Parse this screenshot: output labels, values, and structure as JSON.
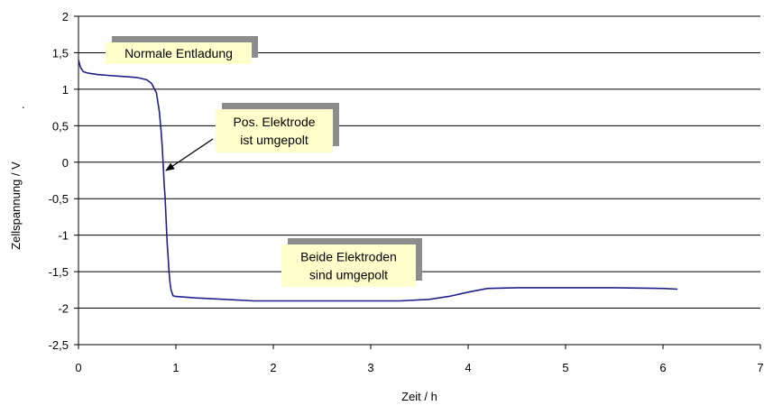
{
  "chart_data": {
    "type": "line",
    "xlabel": "Zeit / h",
    "ylabel": "Zellspannung / V",
    "ylabel_suffix": ".",
    "xlim": [
      0,
      7
    ],
    "ylim": [
      -2.5,
      2
    ],
    "x_ticks": [
      0,
      1,
      2,
      3,
      4,
      5,
      6,
      7
    ],
    "x_tick_labels": [
      "0",
      "1",
      "2",
      "3",
      "4",
      "5",
      "6",
      "7"
    ],
    "y_ticks": [
      2,
      1.5,
      1,
      0.5,
      0,
      -0.5,
      -1,
      -1.5,
      -2,
      -2.5
    ],
    "y_tick_labels": [
      "2",
      "1,5",
      "1",
      "0,5",
      "0",
      "-0,5",
      "-1",
      "-1,5",
      "-2",
      "-2,5"
    ],
    "grid": "horizontal",
    "legend": "none",
    "series": [
      {
        "color": "#1f1f8c",
        "x": [
          0.0,
          0.02,
          0.05,
          0.1,
          0.2,
          0.3,
          0.4,
          0.5,
          0.6,
          0.7,
          0.75,
          0.8,
          0.83,
          0.85,
          0.86,
          0.87,
          0.88,
          0.89,
          0.9,
          0.91,
          0.92,
          0.93,
          0.94,
          0.95,
          0.97,
          1.0,
          1.2,
          1.5,
          1.8,
          2.0,
          2.5,
          3.0,
          3.3,
          3.6,
          3.8,
          4.0,
          4.2,
          4.5,
          5.0,
          5.5,
          6.0,
          6.15
        ],
        "y": [
          1.4,
          1.3,
          1.24,
          1.22,
          1.2,
          1.19,
          1.18,
          1.17,
          1.16,
          1.13,
          1.08,
          0.95,
          0.7,
          0.4,
          0.2,
          -0.05,
          -0.3,
          -0.5,
          -0.8,
          -1.1,
          -1.3,
          -1.5,
          -1.65,
          -1.75,
          -1.83,
          -1.84,
          -1.86,
          -1.88,
          -1.9,
          -1.9,
          -1.9,
          -1.9,
          -1.9,
          -1.88,
          -1.84,
          -1.78,
          -1.73,
          -1.72,
          -1.72,
          -1.72,
          -1.73,
          -1.74
        ]
      }
    ],
    "annotations": [
      {
        "lines": [
          "Normale Entladung"
        ]
      },
      {
        "lines": [
          "Pos. Elektrode",
          "ist umgepolt"
        ]
      },
      {
        "lines": [
          "Beide Elektroden",
          "sind umgepolt"
        ]
      }
    ]
  }
}
